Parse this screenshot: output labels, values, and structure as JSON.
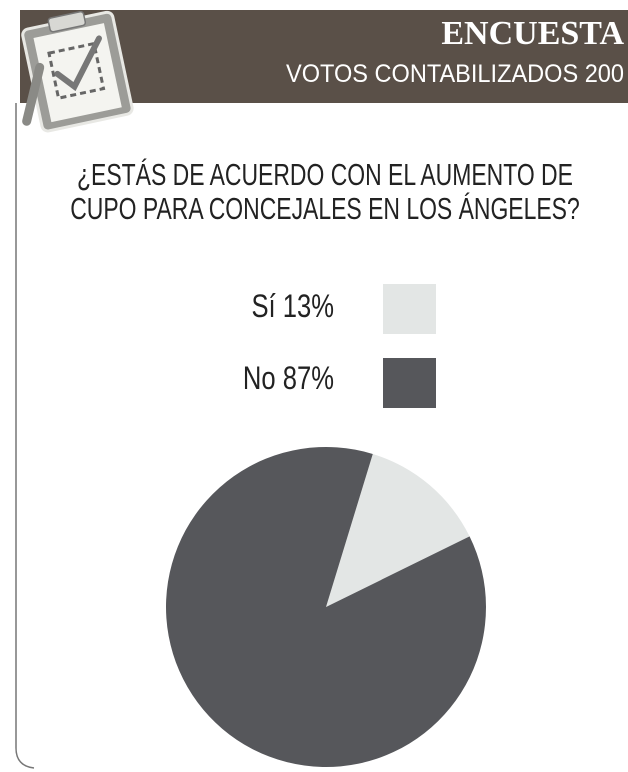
{
  "header": {
    "title": "ENCUESTA",
    "subtitle": "VOTOS CONTABILIZADOS 200"
  },
  "chart_data": {
    "type": "pie",
    "title": "¿ESTÁS DE ACUERDO CON EL AUMENTO DE CUPO PARA CONCEJALES EN LOS ÁNGELES?",
    "categories": [
      "Sí",
      "No"
    ],
    "values": [
      13,
      87
    ],
    "value_labels": [
      "13%",
      "87%"
    ],
    "colors": [
      "#e3e6e5",
      "#56575b"
    ]
  }
}
